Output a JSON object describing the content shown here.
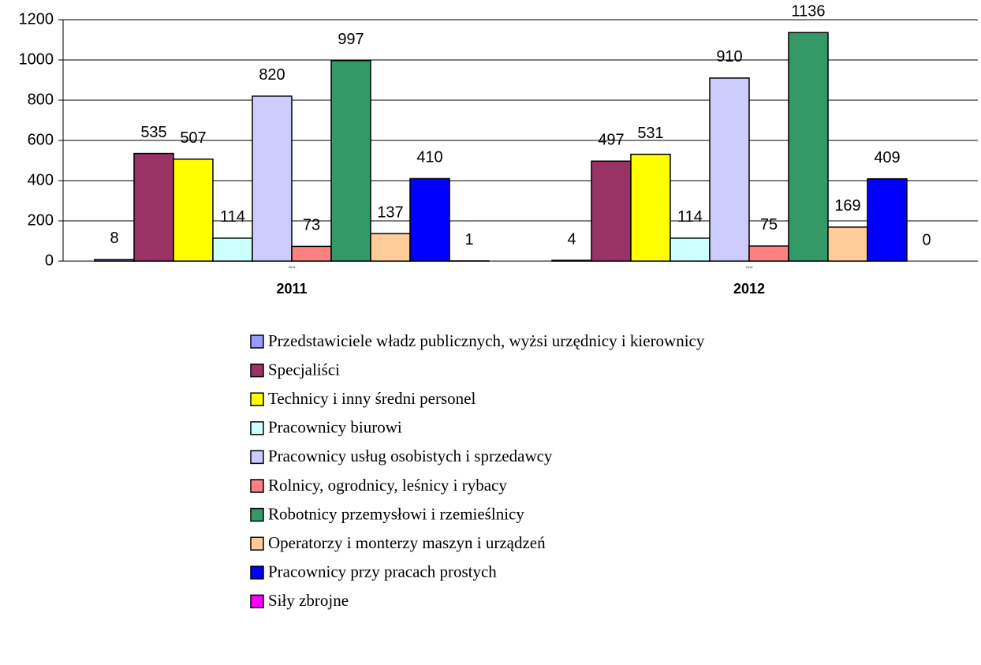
{
  "chart_data": {
    "type": "bar",
    "categories": [
      "2011",
      "2012"
    ],
    "ylim": [
      0,
      1200
    ],
    "yticks": [
      0,
      200,
      400,
      600,
      800,
      1000,
      1200
    ],
    "grid": true,
    "legend": "bottom",
    "series": [
      {
        "name": "Przedstawiciele władz publicznych, wyżsi urzędnicy i kierownicy",
        "color": "#9999ff",
        "values": [
          8,
          4
        ]
      },
      {
        "name": "Specjaliści",
        "color": "#993366",
        "values": [
          535,
          497
        ]
      },
      {
        "name": "Technicy i inny średni personel",
        "color": "#ffff00",
        "values": [
          507,
          531
        ]
      },
      {
        "name": "Pracownicy biurowi",
        "color": "#ccffff",
        "values": [
          114,
          114
        ]
      },
      {
        "name": "Pracownicy usług osobistych i sprzedawcy",
        "color": "#ccccff",
        "values": [
          820,
          910
        ]
      },
      {
        "name": "Rolnicy, ogrodnicy, leśnicy i rybacy",
        "color": "#ff8080",
        "values": [
          73,
          75
        ]
      },
      {
        "name": "Robotnicy przemysłowi i rzemieślnicy",
        "color": "#339966",
        "values": [
          997,
          1136
        ]
      },
      {
        "name": "Operatorzy i monterzy maszyn i urządzeń",
        "color": "#ffcc99",
        "values": [
          137,
          169
        ]
      },
      {
        "name": "Pracownicy przy pracach prostych",
        "color": "#0000ff",
        "values": [
          410,
          409
        ]
      },
      {
        "name": "Siły zbrojne",
        "color": "#ff00ff",
        "values": [
          1,
          0
        ]
      }
    ]
  }
}
